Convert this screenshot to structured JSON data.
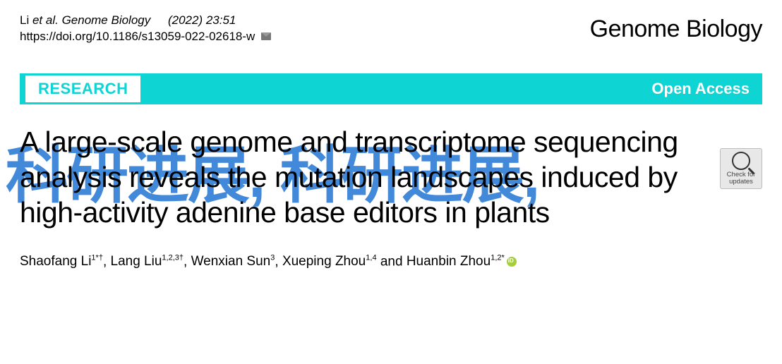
{
  "header": {
    "citation_author": "Li",
    "citation_etal": "et al. ",
    "citation_journal": "Genome Biology",
    "citation_year_issue": "(2022) 23:51",
    "doi_url": "https://doi.org/10.1186/s13059-022-02618-w",
    "journal_brand": "Genome Biology"
  },
  "banner": {
    "article_type": "RESEARCH",
    "open_access": "Open Access",
    "banner_bg": "#0fd4d4",
    "banner_text_color": "#ffffff"
  },
  "crossmark": {
    "line1": "Check for",
    "line2": "updates"
  },
  "title": {
    "text": "A large-scale genome and transcriptome sequencing analysis reveals the mutation landscapes induced by high-activity adenine base editors in plants",
    "font_size": 41,
    "color": "#000000"
  },
  "watermark": {
    "text": "科研进展, 科研进展,",
    "color": "#2a79d4",
    "font_size": 88,
    "opacity": 0.88
  },
  "authors": {
    "list": [
      {
        "name": "Shaofang Li",
        "affil": "1*†"
      },
      {
        "name": "Lang Liu",
        "affil": "1,2,3†"
      },
      {
        "name": "Wenxian Sun",
        "affil": "3"
      },
      {
        "name": "Xueping Zhou",
        "affil": "1,4"
      },
      {
        "name": "Huanbin Zhou",
        "affil": "1,2*",
        "orcid": true
      }
    ],
    "rendered": "Shaofang Li1*†, Lang Liu1,2,3†, Wenxian Sun3, Xueping Zhou1,4 and Huanbin Zhou1,2*"
  },
  "colors": {
    "page_bg": "#ffffff",
    "text": "#000000",
    "cyan": "#0fd4d4",
    "watermark_blue": "#2a79d4",
    "orcid_green": "#a6ce39",
    "crossmark_bg": "#e8e8e8",
    "crossmark_border": "#bdbdbd"
  }
}
